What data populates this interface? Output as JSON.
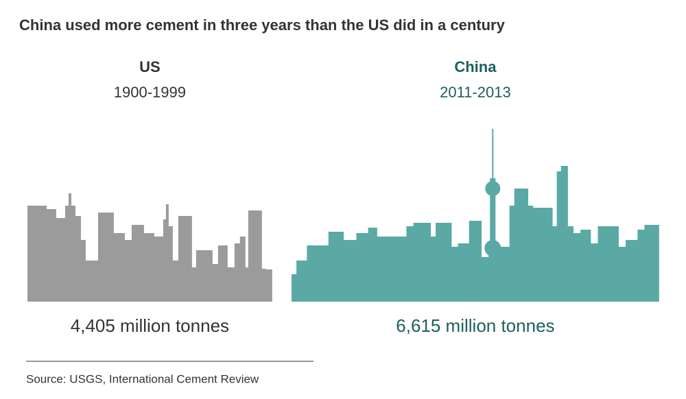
{
  "chart_data": {
    "type": "pictogram",
    "title": "China used more cement in three years than the US did in a century",
    "categories": [
      "US",
      "China"
    ],
    "periods": [
      "1900-1999",
      "2011-2013"
    ],
    "values": [
      4405,
      6615
    ],
    "value_labels": [
      "4,405 million tonnes",
      "6,615 million tonnes"
    ],
    "colors": [
      "#9b9b9b",
      "#5aa9a5"
    ],
    "label_colors": [
      "#333333",
      "#1d5f5f"
    ],
    "source": "Source: USGS, International Cement Review"
  }
}
